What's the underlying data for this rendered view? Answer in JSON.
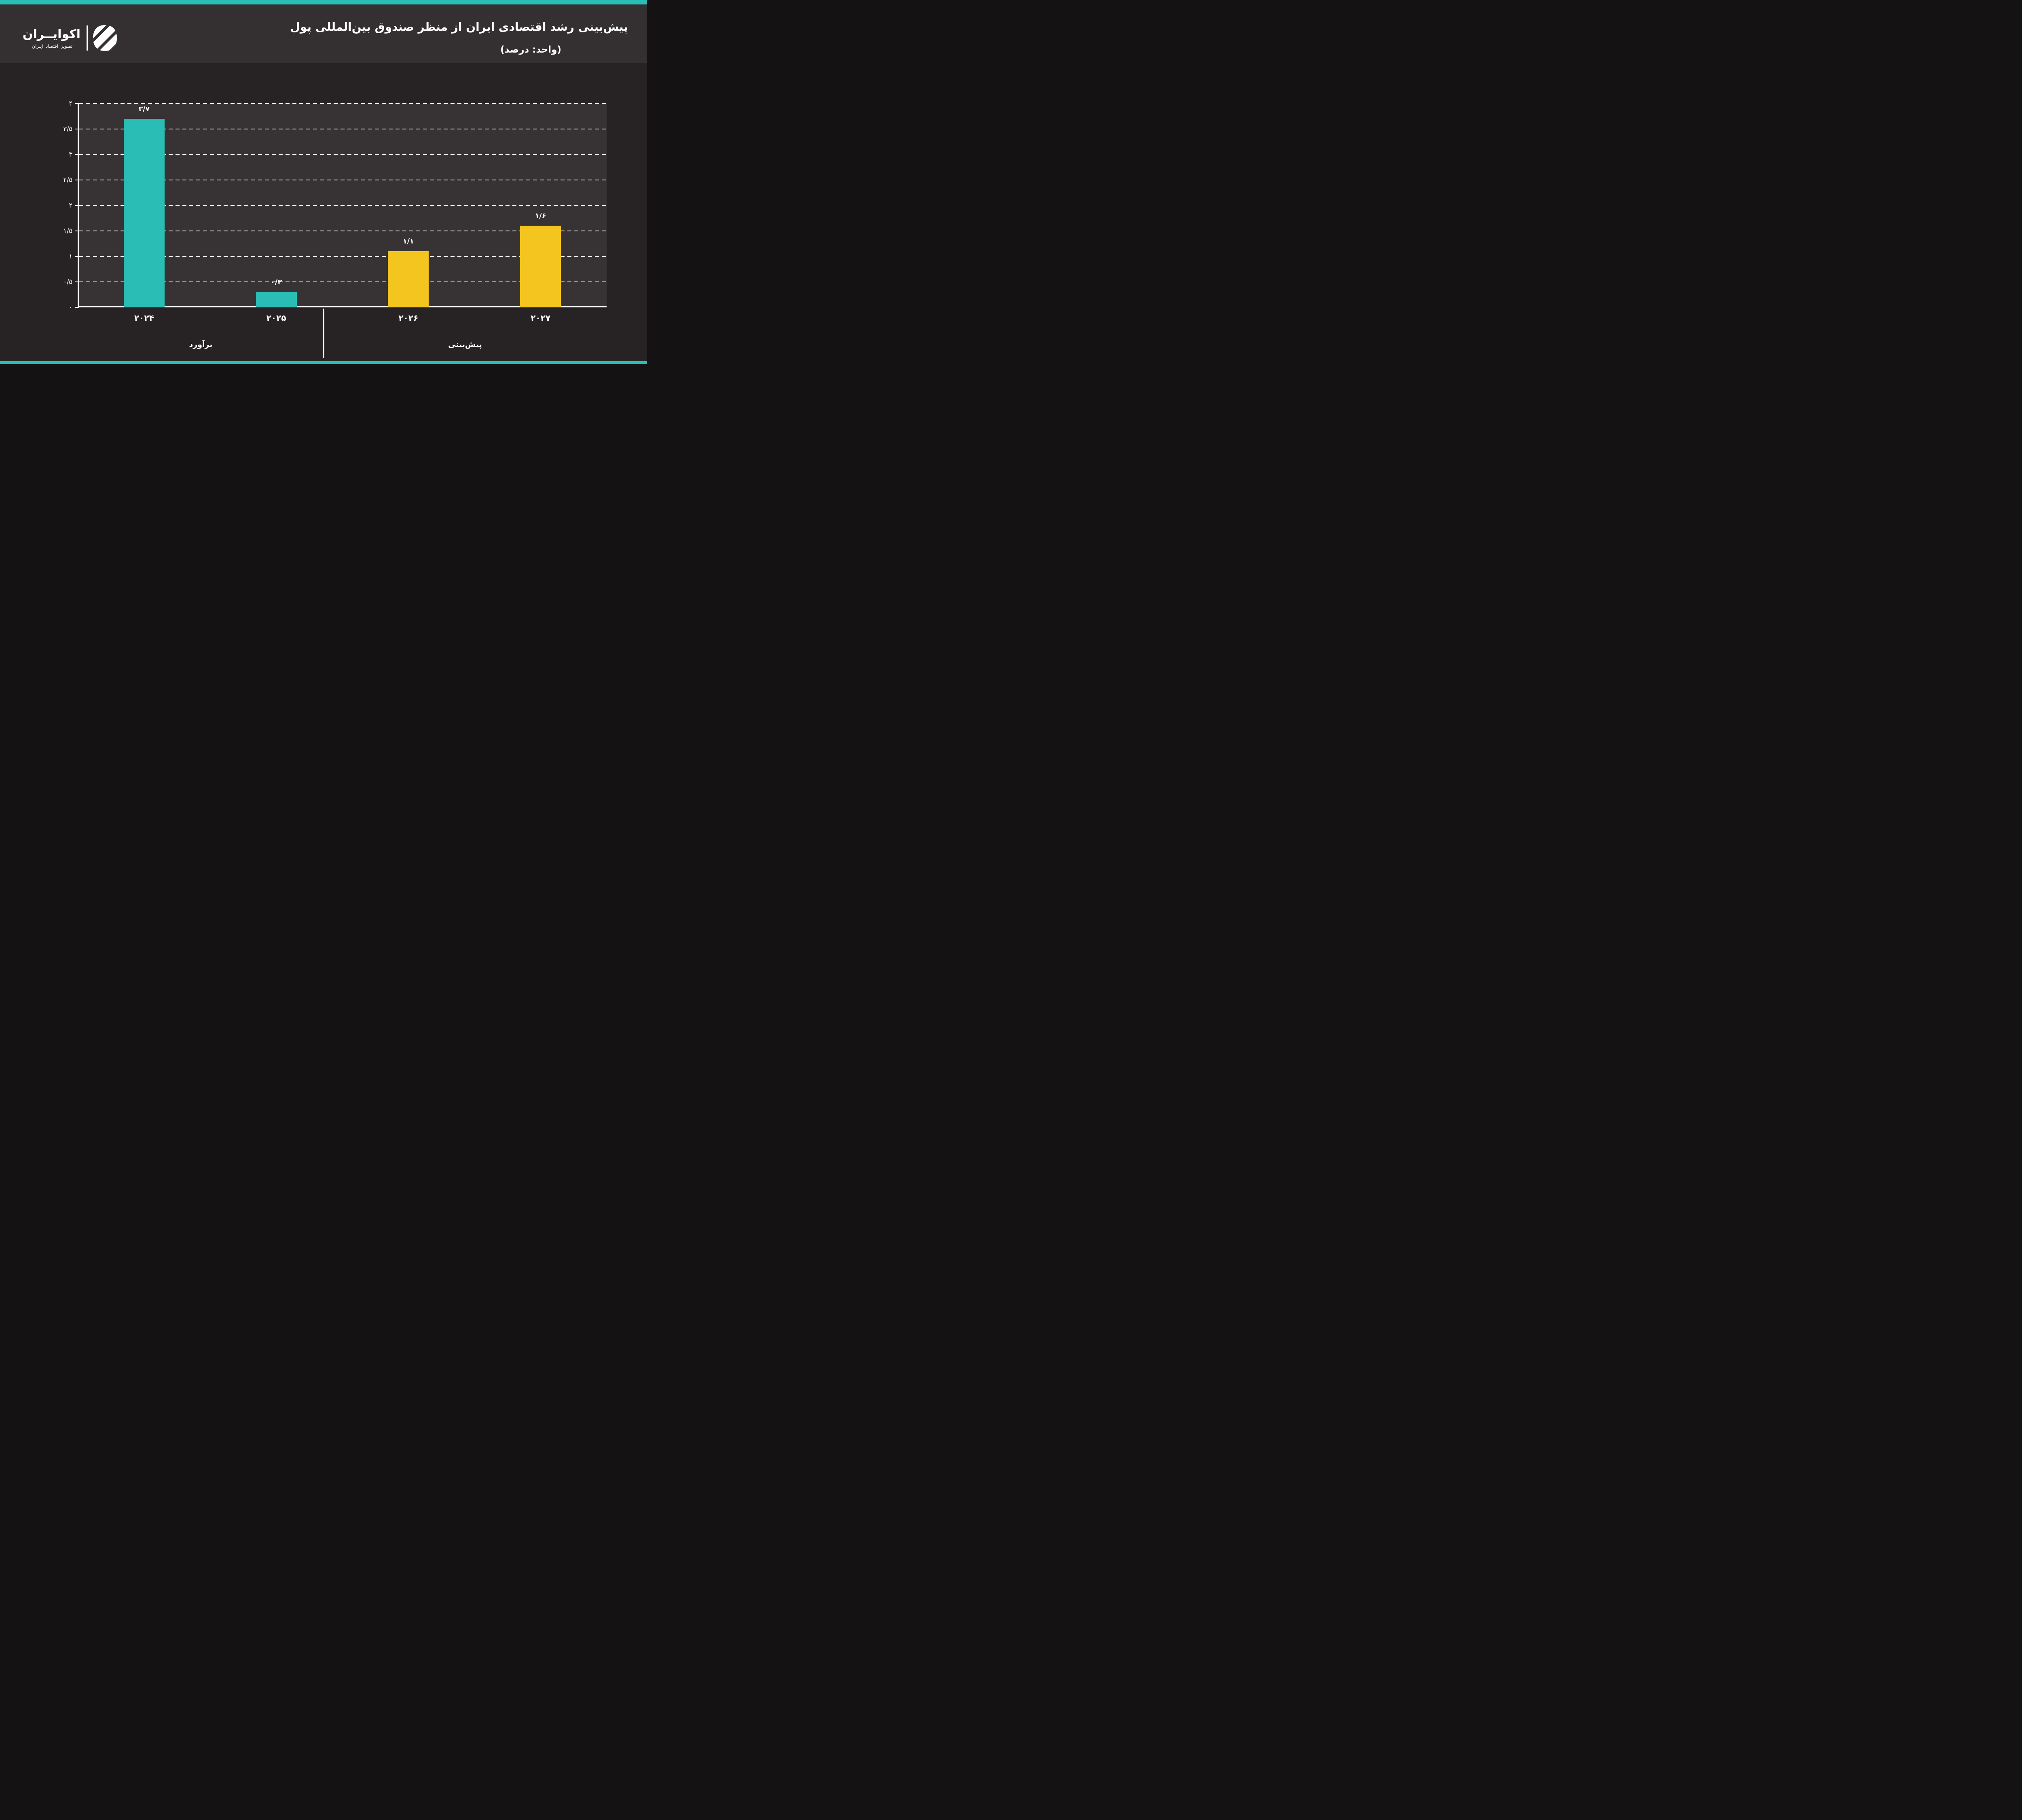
{
  "brand": {
    "wordmark": "اکوایــران",
    "tagline": "تصویر اقتصاد ایـران"
  },
  "header": {
    "title": "پیش‌بینی رشد اقتصادی ایران از منظر صندوق بین‌المللی پول",
    "subtitle": "(واحد: درصد)"
  },
  "colors": {
    "accent_teal": "#2ABDB5",
    "accent_yellow": "#F4C41F",
    "header_bg": "#343031",
    "page_bg": "#272324",
    "plot_bg": "#373334",
    "text": "#FFFFFF"
  },
  "chart_data": {
    "type": "bar",
    "title": "پیش‌بینی رشد اقتصادی ایران از منظر صندوق بین‌المللی پول",
    "unit_label": "(واحد: درصد)",
    "categories": [
      "۲۰۲۴",
      "۲۰۲۵",
      "۲۰۲۶",
      "۲۰۲۷"
    ],
    "category_names": [
      "2024",
      "2025",
      "2026",
      "2027"
    ],
    "values": [
      3.7,
      0.3,
      1.1,
      1.6
    ],
    "value_labels": [
      "۳/۷",
      "۰/۳",
      "۱/۱",
      "۱/۶"
    ],
    "bar_colors": [
      "#2ABDB5",
      "#2ABDB5",
      "#F4C41F",
      "#F4C41F"
    ],
    "groups": [
      {
        "label": "برآورد",
        "name": "estimate",
        "indices": [
          0,
          1
        ]
      },
      {
        "label": "پیش‌بینی",
        "name": "forecast",
        "indices": [
          2,
          3
        ]
      }
    ],
    "ylim": [
      0,
      4
    ],
    "ytick_step": 0.5,
    "ytick_labels": [
      "۰",
      "۰/۵",
      "۱",
      "۱/۵",
      "۲",
      "۲/۵",
      "۳",
      "۳/۵",
      "۴"
    ],
    "grid": "dashed-horizontal",
    "legend": "none"
  }
}
